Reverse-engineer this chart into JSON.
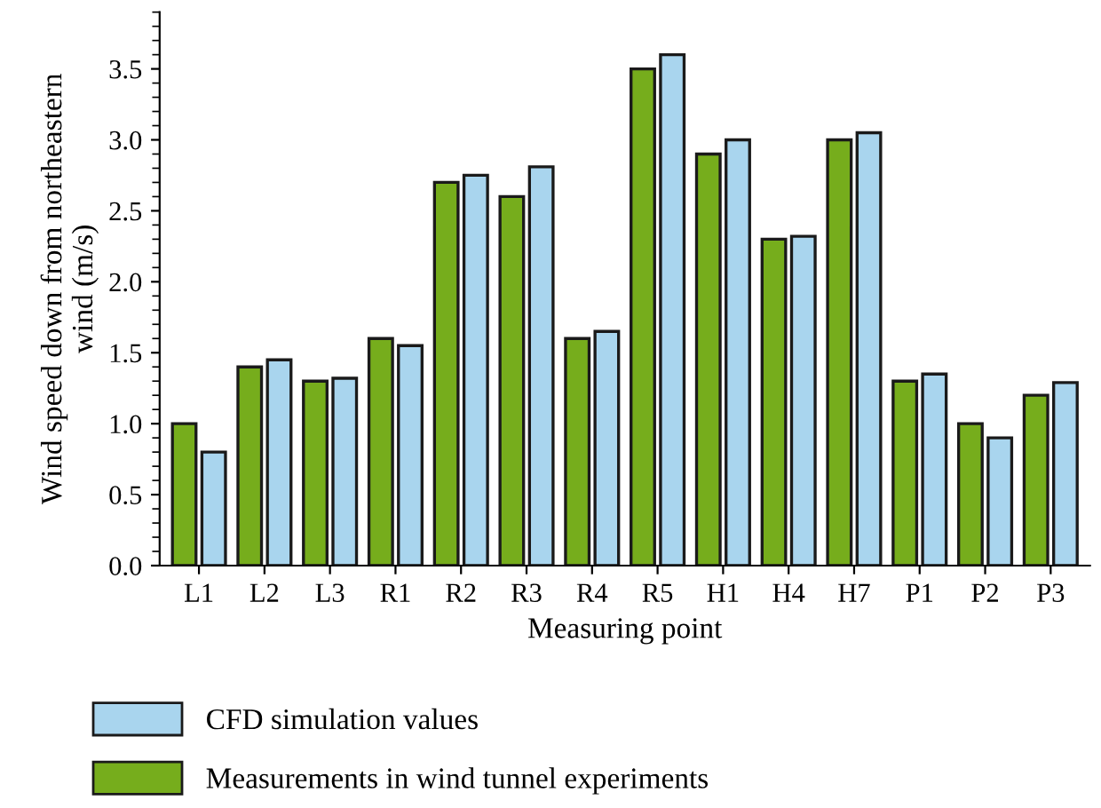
{
  "chart_data": {
    "type": "bar",
    "xlabel": "Measuring point",
    "ylabel": "Wind speed down from northeastern\nwind (m/s)",
    "categories": [
      "L1",
      "L2",
      "L3",
      "R1",
      "R2",
      "R3",
      "R4",
      "R5",
      "H1",
      "H4",
      "H7",
      "P1",
      "P2",
      "P3"
    ],
    "series": [
      {
        "name": "Measurements in wind tunnel experiments",
        "color": "#76ad1c",
        "values": [
          1.0,
          1.4,
          1.3,
          1.6,
          2.7,
          2.6,
          1.6,
          3.5,
          2.9,
          2.3,
          3.0,
          1.3,
          1.0,
          1.2
        ]
      },
      {
        "name": "CFD simulation values",
        "color": "#a9d5ee",
        "values": [
          0.8,
          1.45,
          1.32,
          1.55,
          2.75,
          2.81,
          1.65,
          3.6,
          3.0,
          2.32,
          3.05,
          1.35,
          0.9,
          1.29
        ]
      }
    ],
    "ylim": [
      0,
      3.9
    ],
    "yticks": [
      {
        "value": 0,
        "label": "0.0"
      },
      {
        "value": 0.5,
        "label": "0.5"
      },
      {
        "value": 1,
        "label": "1.0"
      },
      {
        "value": 1.5,
        "label": "1.5"
      },
      {
        "value": 2,
        "label": "2.0"
      },
      {
        "value": 2.5,
        "label": "2.5"
      },
      {
        "value": 3,
        "label": "3.0"
      },
      {
        "value": 3.5,
        "label": "3.5"
      }
    ],
    "grid": false,
    "legend": "bottom left"
  }
}
